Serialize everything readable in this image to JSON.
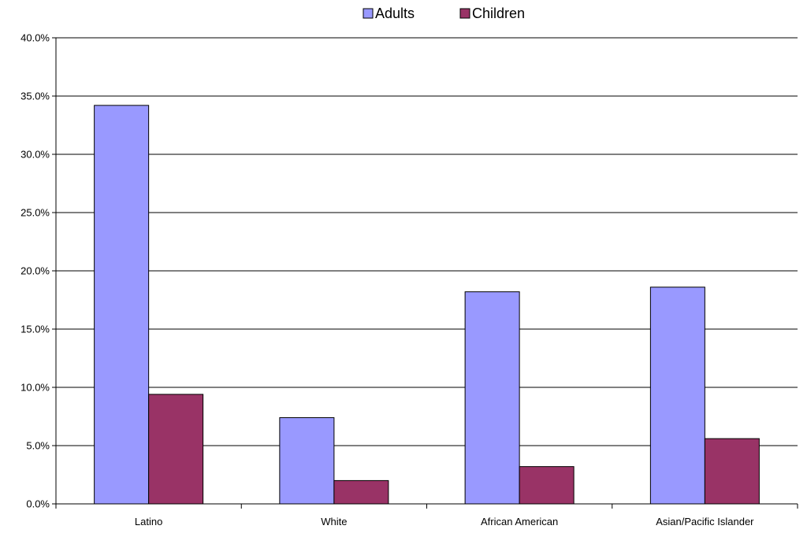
{
  "chart_data": {
    "type": "bar",
    "title": "",
    "xlabel": "",
    "ylabel": "",
    "categories": [
      "Latino",
      "White",
      "African American",
      "Asian/Pacific Islander"
    ],
    "series": [
      {
        "name": "Adults",
        "color": "#9999ff",
        "values": [
          34.2,
          7.4,
          18.2,
          18.6
        ]
      },
      {
        "name": "Children",
        "color": "#993366",
        "values": [
          9.4,
          2.0,
          3.2,
          5.6
        ]
      }
    ],
    "ylim": [
      0,
      40
    ],
    "yticks": [
      "0.0%",
      "5.0%",
      "10.0%",
      "15.0%",
      "20.0%",
      "25.0%",
      "30.0%",
      "35.0%",
      "40.0%"
    ],
    "grid": true,
    "legend": "top-center"
  }
}
